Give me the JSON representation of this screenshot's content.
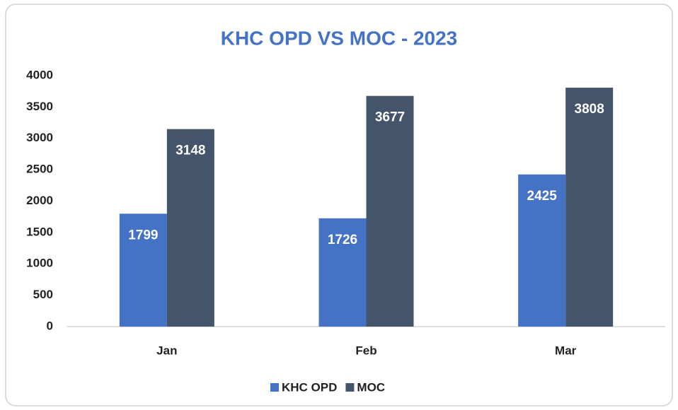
{
  "chart_data": {
    "type": "bar",
    "title": "KHC OPD VS MOC - 2023",
    "categories": [
      "Jan",
      "Feb",
      "Mar"
    ],
    "series": [
      {
        "name": "KHC OPD",
        "color": "#4472c4",
        "values": [
          1799,
          1726,
          2425
        ]
      },
      {
        "name": "MOC",
        "color": "#44546a",
        "values": [
          3148,
          3677,
          3808
        ]
      }
    ],
    "ylim": [
      0,
      4000
    ],
    "yticks": [
      0,
      500,
      1000,
      1500,
      2000,
      2500,
      3000,
      3500,
      4000
    ],
    "grid": false,
    "legend": "bottom"
  }
}
